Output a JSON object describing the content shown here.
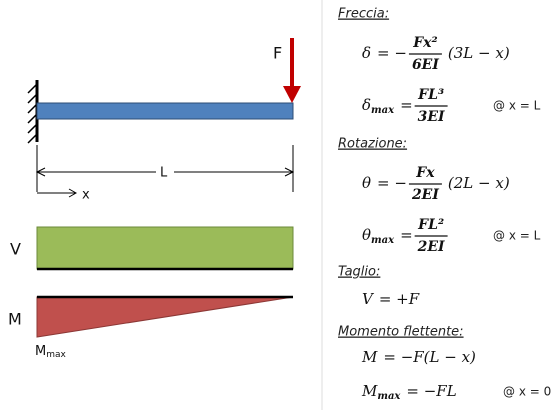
{
  "diagram": {
    "force_label": "F",
    "length_label": "L",
    "x_label": "x",
    "shear_label": "V",
    "moment_label": "M",
    "mmax_symbol": "M",
    "mmax_sub": "max"
  },
  "sections": [
    {
      "heading": "Freccia:",
      "formulas": [
        {
          "symbol": "δ",
          "eq": "= −",
          "num": "Fx²",
          "den": "6EI",
          "rhs": "(3L − x)"
        },
        {
          "symbol": "δ",
          "sub": "max",
          "eq": "=",
          "num": "FL³",
          "den": "3EI",
          "note": "@ x = L"
        }
      ]
    },
    {
      "heading": "Rotazione:",
      "formulas": [
        {
          "symbol": "θ",
          "eq": "= −",
          "num": "Fx",
          "den": "2EI",
          "rhs": "(2L − x)"
        },
        {
          "symbol": "θ",
          "sub": "max",
          "eq": "=",
          "num": "FL²",
          "den": "2EI",
          "note": "@ x = L"
        }
      ]
    },
    {
      "heading": "Taglio:",
      "formulas": [
        {
          "symbol": "V",
          "eq": "= +F"
        }
      ]
    },
    {
      "heading": "Momento flettente:",
      "formulas": [
        {
          "symbol": "M",
          "eq": "= −F(L − x)"
        },
        {
          "symbol": "M",
          "sub": "max",
          "eq": "= −FL",
          "note": "@ x = 0"
        }
      ]
    }
  ]
}
